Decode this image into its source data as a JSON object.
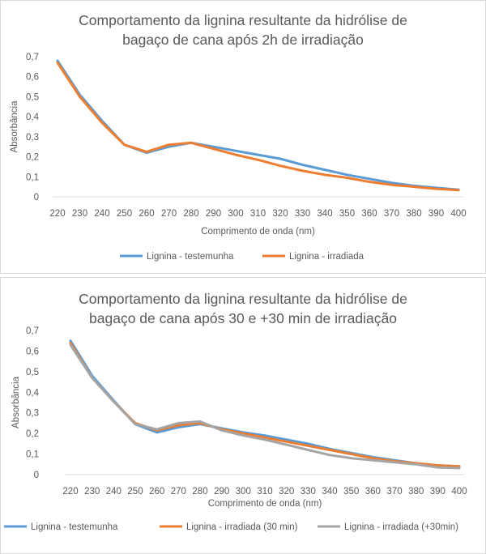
{
  "chart_data": [
    {
      "type": "line",
      "title": [
        "Comportamento da lignina resultante da hidrólise de",
        "bagaço de cana após 2h de irradiação"
      ],
      "xlabel": "Comprimento de onda (nm)",
      "ylabel": "Absorbância",
      "x": [
        220,
        230,
        240,
        250,
        260,
        270,
        280,
        290,
        300,
        310,
        320,
        330,
        340,
        350,
        360,
        370,
        380,
        390,
        400
      ],
      "ylim": [
        0,
        0.7
      ],
      "yticks": [
        "0",
        "0,1",
        "0,2",
        "0,3",
        "0,4",
        "0,5",
        "0,6",
        "0,7"
      ],
      "grid": false,
      "legend": "bottom",
      "series": [
        {
          "name": "Lignina - testemunha",
          "color": "#5B9BD5",
          "values": [
            0.68,
            0.51,
            0.38,
            0.26,
            0.22,
            0.25,
            0.27,
            0.25,
            0.23,
            0.21,
            0.19,
            0.16,
            0.135,
            0.11,
            0.09,
            0.07,
            0.055,
            0.045,
            0.035
          ]
        },
        {
          "name": "Lignina - irradiada",
          "color": "#ED7D31",
          "values": [
            0.67,
            0.5,
            0.37,
            0.26,
            0.225,
            0.26,
            0.27,
            0.24,
            0.21,
            0.185,
            0.155,
            0.13,
            0.11,
            0.095,
            0.075,
            0.06,
            0.05,
            0.04,
            0.033
          ]
        }
      ]
    },
    {
      "type": "line",
      "title": [
        "Comportamento da lignina resultante da hidrólise de",
        "bagaço de cana após 30 e +30 min de irradiação"
      ],
      "xlabel": "Comprimento de onda (nm)",
      "ylabel": "Absorbância",
      "x": [
        220,
        230,
        240,
        250,
        260,
        270,
        280,
        290,
        300,
        310,
        320,
        330,
        340,
        350,
        360,
        370,
        380,
        390,
        400
      ],
      "ylim": [
        0,
        0.7
      ],
      "yticks": [
        "0",
        "0,1",
        "0,2",
        "0,3",
        "0,4",
        "0,5",
        "0,6",
        "0,7"
      ],
      "grid": false,
      "legend": "bottom",
      "series": [
        {
          "name": "Lignina -  testemunha",
          "color": "#5B9BD5",
          "values": [
            0.65,
            0.48,
            0.36,
            0.245,
            0.205,
            0.23,
            0.245,
            0.225,
            0.205,
            0.19,
            0.17,
            0.15,
            0.125,
            0.105,
            0.085,
            0.07,
            0.055,
            0.045,
            0.04
          ]
        },
        {
          "name": "Lignina - irradiada (30 min)",
          "color": "#ED7D31",
          "values": [
            0.64,
            0.47,
            0.355,
            0.25,
            0.215,
            0.24,
            0.25,
            0.22,
            0.2,
            0.18,
            0.16,
            0.14,
            0.12,
            0.1,
            0.08,
            0.065,
            0.055,
            0.045,
            0.04
          ]
        },
        {
          "name": "Lignina - irradiada (+30min)",
          "color": "#A5A5A5",
          "values": [
            0.63,
            0.47,
            0.355,
            0.245,
            0.22,
            0.25,
            0.258,
            0.215,
            0.19,
            0.17,
            0.145,
            0.12,
            0.095,
            0.08,
            0.07,
            0.06,
            0.05,
            0.035,
            0.032
          ]
        }
      ]
    }
  ]
}
